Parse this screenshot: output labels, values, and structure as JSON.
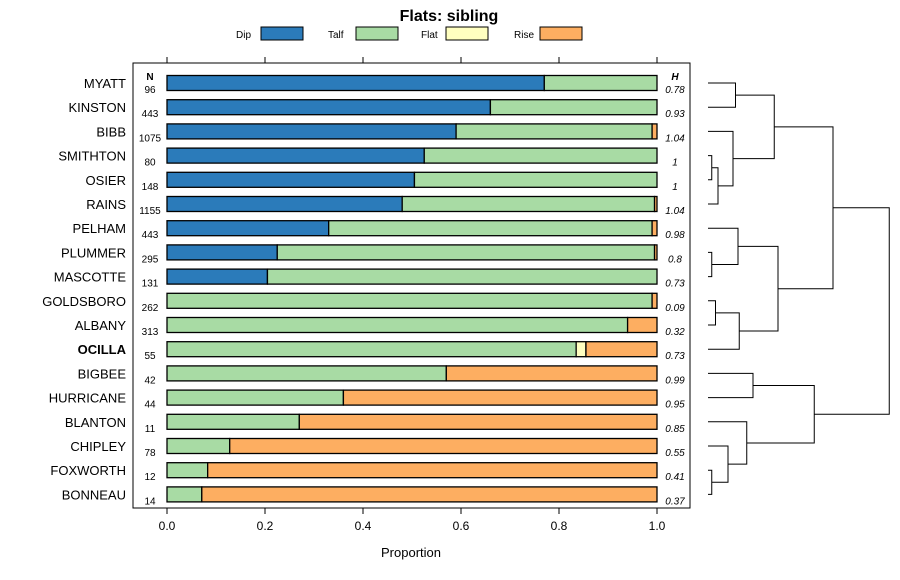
{
  "chart_data": {
    "type": "bar",
    "orientation": "horizontal-stacked",
    "title": "Flats: sibling",
    "xlabel": "Proportion",
    "ylabel": "",
    "xlim": [
      0,
      1
    ],
    "xticks": [
      "0.0",
      "0.2",
      "0.4",
      "0.6",
      "0.8",
      "1.0"
    ],
    "n_header": "N",
    "h_header": "H",
    "highlight": "OCILLA",
    "colors": {
      "Dip": "#2b7bba",
      "Talf": "#a8dba4",
      "Flat": "#ffffc0",
      "Rise": "#fdae61"
    },
    "series_names": [
      "Dip",
      "Talf",
      "Flat",
      "Rise"
    ],
    "categories": [
      "MYATT",
      "KINSTON",
      "BIBB",
      "SMITHTON",
      "OSIER",
      "RAINS",
      "PELHAM",
      "PLUMMER",
      "MASCOTTE",
      "GOLDSBORO",
      "ALBANY",
      "OCILLA",
      "BIGBEE",
      "HURRICANE",
      "BLANTON",
      "CHIPLEY",
      "FOXWORTH",
      "BONNEAU"
    ],
    "n": [
      "96",
      "443",
      "1075",
      "80",
      "148",
      "1155",
      "443",
      "295",
      "131",
      "262",
      "313",
      "55",
      "42",
      "44",
      "11",
      "78",
      "12",
      "14"
    ],
    "h": [
      "0.78",
      "0.93",
      "1.04",
      "1",
      "1",
      "1.04",
      "0.98",
      "0.8",
      "0.73",
      "0.09",
      "0.32",
      "0.73",
      "0.99",
      "0.95",
      "0.85",
      "0.55",
      "0.41",
      "0.37"
    ],
    "series": [
      {
        "name": "Dip",
        "values": [
          0.77,
          0.66,
          0.59,
          0.525,
          0.505,
          0.48,
          0.33,
          0.225,
          0.205,
          0,
          0,
          0,
          0,
          0,
          0,
          0,
          0,
          0
        ]
      },
      {
        "name": "Talf",
        "values": [
          0.23,
          0.34,
          0.4,
          0.475,
          0.495,
          0.515,
          0.66,
          0.77,
          0.795,
          0.99,
          0.94,
          0.835,
          0.57,
          0.36,
          0.27,
          0.128,
          0.083,
          0.071
        ]
      },
      {
        "name": "Flat",
        "values": [
          0,
          0,
          0,
          0,
          0,
          0,
          0,
          0,
          0,
          0,
          0,
          0.02,
          0,
          0,
          0,
          0,
          0,
          0
        ]
      },
      {
        "name": "Rise",
        "values": [
          0,
          0,
          0.01,
          0,
          0,
          0.005,
          0.01,
          0.005,
          0,
          0.01,
          0.06,
          0.145,
          0.43,
          0.64,
          0.73,
          0.872,
          0.917,
          0.929
        ]
      }
    ],
    "dendrogram": {
      "merges": [
        [
          "MYATT",
          "KINSTON"
        ],
        [
          "SMITHTON",
          "OSIER"
        ],
        [
          "RAINS",
          1
        ],
        [
          "BIBB",
          2
        ],
        [
          0,
          3
        ],
        [
          "PLUMMER",
          "MASCOTTE"
        ],
        [
          "PELHAM",
          5
        ],
        [
          "GOLDSBORO",
          "ALBANY"
        ],
        [
          7,
          "OCILLA"
        ],
        [
          6,
          8
        ],
        [
          4,
          9
        ],
        [
          "BIGBEE",
          "HURRICANE"
        ],
        [
          "FOXWORTH",
          "BONNEAU"
        ],
        [
          "CHIPLEY",
          12
        ],
        [
          "BLANTON",
          13
        ],
        [
          11,
          14
        ],
        [
          10,
          15
        ]
      ],
      "heights": [
        0.22,
        0.03,
        0.08,
        0.2,
        0.53,
        0.03,
        0.24,
        0.06,
        0.25,
        0.56,
        1.0,
        0.36,
        0.03,
        0.16,
        0.31,
        0.85,
        1.45
      ]
    }
  }
}
